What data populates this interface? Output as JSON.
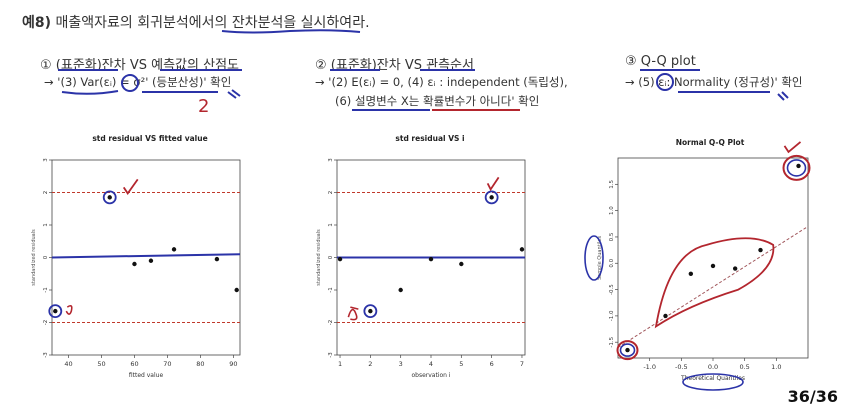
{
  "heading": {
    "number": "예8)",
    "text": " 매출액자료의 회귀분석에서의 잔차분석을 실시하여라."
  },
  "sections": [
    {
      "title": "① (표준화)잔차 VS 예측값의 산점도",
      "lines": [
        "→ '(3) Var(εᵢ) = σ²' (등분산성)' 확인"
      ]
    },
    {
      "title": "② (표준화)잔차 VS 관측순서",
      "lines": [
        "→ '(2) E(εᵢ) = 0, (4) εᵢ : independent (독립성),",
        "(6) 설명변수 X는 확률변수가 아니다' 확인"
      ]
    },
    {
      "title": "③ Q-Q plot",
      "lines": [
        "→ (5) εᵢ: Normality (정규성)' 확인"
      ]
    }
  ],
  "annotations": {
    "handwritten_2": "2"
  },
  "chart_data": [
    {
      "type": "scatter",
      "title": "std residual VS fitted value",
      "xlabel": "fitted value",
      "ylabel": "standardized residuals",
      "xlim": [
        35,
        92
      ],
      "ylim": [
        -3,
        3
      ],
      "xticks": [
        40,
        50,
        60,
        70,
        80,
        90
      ],
      "yticks": [
        -3,
        -2,
        -1,
        0,
        1,
        2,
        3
      ],
      "x": [
        36,
        52.5,
        60,
        65,
        72,
        85,
        91
      ],
      "y": [
        -1.65,
        1.85,
        -0.2,
        -0.1,
        0.25,
        -0.05,
        -1.0
      ],
      "reference_lines": [
        2,
        -2
      ],
      "fit_line": [
        0,
        0.1
      ]
    },
    {
      "type": "scatter",
      "title": "std residual VS i",
      "xlabel": "observation i",
      "ylabel": "standardized residuals",
      "xlim": [
        0.9,
        7.1
      ],
      "ylim": [
        -3,
        3
      ],
      "xticks": [
        1,
        2,
        3,
        4,
        5,
        6,
        7
      ],
      "yticks": [
        -3,
        -2,
        -1,
        0,
        1,
        2,
        3
      ],
      "x": [
        1,
        2,
        3,
        4,
        5,
        6,
        7
      ],
      "y": [
        -0.05,
        -1.65,
        -1.0,
        -0.05,
        -0.2,
        1.85,
        0.25
      ],
      "reference_lines": [
        2,
        -2
      ],
      "fit_line": [
        0,
        0
      ]
    },
    {
      "type": "scatter",
      "title": "Normal Q-Q Plot",
      "xlabel": "Theoretical Quantiles",
      "ylabel": "Sample Quantiles",
      "xlim": [
        -1.5,
        1.5
      ],
      "ylim": [
        -1.8,
        2.0
      ],
      "xticks": [
        -1.0,
        -0.5,
        0.0,
        0.5,
        1.0
      ],
      "yticks": [
        -1.5,
        -1.0,
        -0.5,
        0.0,
        0.5,
        1.0,
        1.5
      ],
      "x": [
        -1.35,
        -0.75,
        -0.35,
        0.0,
        0.35,
        0.75,
        1.35
      ],
      "y": [
        -1.65,
        -1.0,
        -0.2,
        -0.05,
        -0.1,
        0.25,
        1.85
      ],
      "reference_line": {
        "x": [
          -1.5,
          1.5
        ],
        "y": [
          -1.6,
          0.7
        ]
      }
    }
  ],
  "page": {
    "current": "36",
    "total": "36",
    "label": "36/36"
  },
  "colors": {
    "marker": "#1a237e",
    "red": "#b3262e",
    "fit_line": "#2b33a8",
    "ref": "#c0392b"
  }
}
